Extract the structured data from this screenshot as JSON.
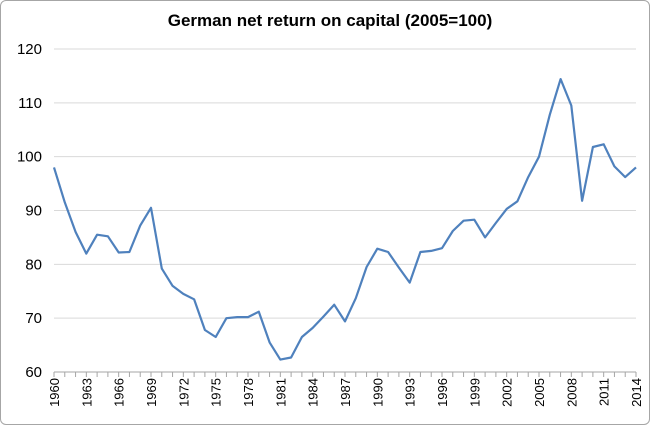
{
  "chart_data": {
    "type": "line",
    "title": "German net return on capital (2005=100)",
    "xlabel": "",
    "ylabel": "",
    "ylim": [
      60,
      120
    ],
    "yticks": [
      60,
      70,
      80,
      90,
      100,
      110,
      120
    ],
    "xlim": [
      1960,
      2014
    ],
    "xticks": [
      1960,
      1963,
      1966,
      1969,
      1972,
      1975,
      1978,
      1981,
      1984,
      1987,
      1990,
      1993,
      1996,
      1999,
      2002,
      2005,
      2008,
      2011,
      2014
    ],
    "grid": "horizontal",
    "line_color": "#4f81bd",
    "series": [
      {
        "x": [
          1960,
          1961,
          1962,
          1963,
          1964,
          1965,
          1966,
          1967,
          1968,
          1969,
          1970,
          1971,
          1972,
          1973,
          1974,
          1975,
          1976,
          1977,
          1978,
          1979,
          1980,
          1981,
          1982,
          1983,
          1984,
          1985,
          1986,
          1987,
          1988,
          1989,
          1990,
          1991,
          1992,
          1993,
          1994,
          1995,
          1996,
          1997,
          1998,
          1999,
          2000,
          2001,
          2002,
          2003,
          2004,
          2005,
          2006,
          2007,
          2008,
          2009,
          2010,
          2011,
          2012,
          2013,
          2014
        ],
        "values": [
          98,
          91.5,
          86,
          82,
          85.5,
          85.2,
          82.2,
          82.3,
          87.2,
          90.5,
          79.2,
          76,
          74.5,
          73.5,
          67.8,
          66.5,
          70,
          70.2,
          70.2,
          71.2,
          65.5,
          62.3,
          62.7,
          66.5,
          68.2,
          70.3,
          72.5,
          69.4,
          73.7,
          79.5,
          82.9,
          82.3,
          79.4,
          76.6,
          82.3,
          82.5,
          83,
          86.2,
          88.1,
          88.3,
          85,
          87.7,
          90.3,
          91.7,
          96.2,
          100,
          107.8,
          114.4,
          109.5,
          91.8,
          101.8,
          102.3,
          98.2,
          96.2,
          98
        ]
      }
    ]
  }
}
